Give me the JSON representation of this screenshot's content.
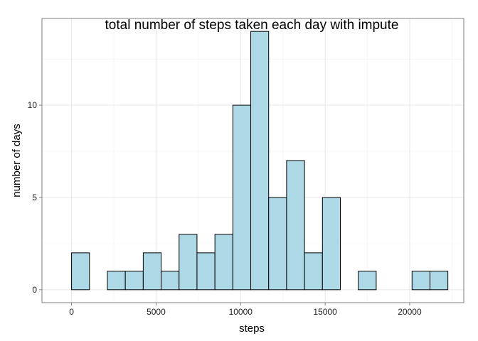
{
  "chart_data": {
    "type": "bar",
    "subtype": "histogram",
    "title": "total number of steps taken each day with impute",
    "xlabel": "steps",
    "ylabel": "number of days",
    "xlim": [
      -1750,
      23200
    ],
    "ylim": [
      -0.7,
      14.7
    ],
    "x_ticks": [
      0,
      5000,
      10000,
      15000,
      20000
    ],
    "y_ticks": [
      0,
      5,
      10
    ],
    "x_tick_labels": [
      "0",
      "5000",
      "10000",
      "15000",
      "20000"
    ],
    "y_tick_labels": [
      "0",
      "5",
      "10"
    ],
    "grid": true,
    "bin_width": 1060,
    "bins": [
      {
        "x0": -1060,
        "x1": 0,
        "count": 0
      },
      {
        "x0": 0,
        "x1": 1060,
        "count": 2
      },
      {
        "x0": 1060,
        "x1": 2120,
        "count": 0
      },
      {
        "x0": 2120,
        "x1": 3180,
        "count": 1
      },
      {
        "x0": 3180,
        "x1": 4240,
        "count": 1
      },
      {
        "x0": 4240,
        "x1": 5300,
        "count": 2
      },
      {
        "x0": 5300,
        "x1": 6360,
        "count": 1
      },
      {
        "x0": 6360,
        "x1": 7420,
        "count": 3
      },
      {
        "x0": 7420,
        "x1": 8480,
        "count": 2
      },
      {
        "x0": 8480,
        "x1": 9540,
        "count": 3
      },
      {
        "x0": 9540,
        "x1": 10600,
        "count": 10
      },
      {
        "x0": 10600,
        "x1": 11660,
        "count": 14
      },
      {
        "x0": 11660,
        "x1": 12720,
        "count": 5
      },
      {
        "x0": 12720,
        "x1": 13780,
        "count": 7
      },
      {
        "x0": 13780,
        "x1": 14840,
        "count": 2
      },
      {
        "x0": 14840,
        "x1": 15900,
        "count": 5
      },
      {
        "x0": 15900,
        "x1": 16960,
        "count": 0
      },
      {
        "x0": 16960,
        "x1": 18020,
        "count": 1
      },
      {
        "x0": 18020,
        "x1": 19080,
        "count": 0
      },
      {
        "x0": 19080,
        "x1": 20140,
        "count": 0
      },
      {
        "x0": 20140,
        "x1": 21200,
        "count": 1
      },
      {
        "x0": 21200,
        "x1": 22260,
        "count": 1
      }
    ],
    "colors": {
      "bar_fill": "#add8e6",
      "bar_outline": "#000000",
      "grid": "#e4e4e4",
      "panel_border": "#7f7f7f"
    }
  }
}
